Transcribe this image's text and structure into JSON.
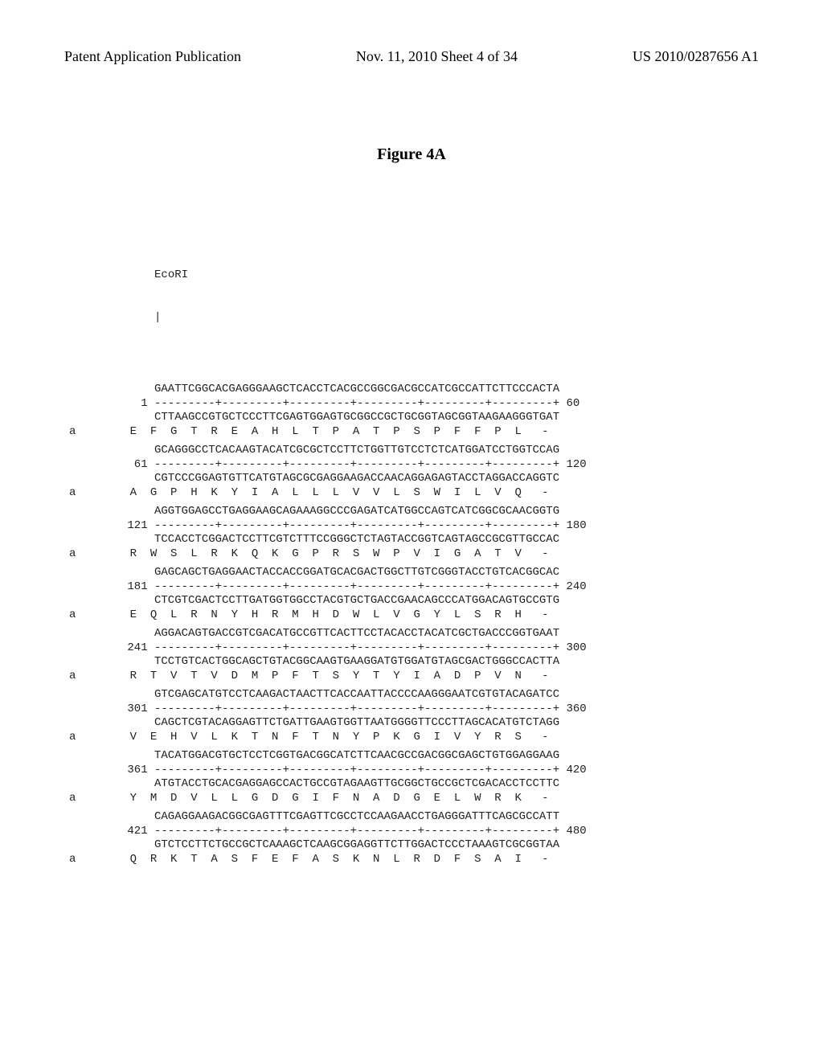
{
  "header": {
    "left": "Patent Application Publication",
    "center": "Nov. 11, 2010  Sheet 4 of 34",
    "right": "US 2010/0287656 A1"
  },
  "figure": {
    "title": "Figure 4A"
  },
  "enzyme": {
    "name": "EcoRI",
    "marker": "|"
  },
  "ruler": "---------+---------+---------+---------+---------+---------+",
  "blocks": [
    {
      "start": "1",
      "end": "60",
      "top": "GAATTCGGCACGAGGGAAGCTCACCTCACGCCGGCGACGCCATCGCCATTCTTCCCACTA",
      "bottom": "CTTAAGCCGTGCTCCCTTCGAGTGGAGTGCGGCCGCTGCGGTAGCGGTAAGAAGGGTGAT",
      "aa": "     E  F  G  T  R  E  A  H  L  T  P  A  T  P  S  P  F  F  P  L   -"
    },
    {
      "start": "61",
      "end": "120",
      "top": "GCAGGGCCTCACAAGTACATCGCGCTCCTTCTGGTTGTCCTCTCATGGATCCTGGTCCAG",
      "bottom": "CGTCCCGGAGTGTTCATGTAGCGCGAGGAAGACCAACAGGAGAGTACCTAGGACCAGGTC",
      "aa": "     A  G  P  H  K  Y  I  A  L  L  L  V  V  L  S  W  I  L  V  Q   -"
    },
    {
      "start": "121",
      "end": "180",
      "top": "AGGTGGAGCCTGAGGAAGCAGAAAGGCCCGAGATCATGGCCAGTCATCGGCGCAACGGTG",
      "bottom": "TCCACCTCGGACTCCTTCGTCTTTCCGGGCTCTAGTACCGGTCAGTAGCCGCGTTGCCAC",
      "aa": "     R  W  S  L  R  K  Q  K  G  P  R  S  W  P  V  I  G  A  T  V   -"
    },
    {
      "start": "181",
      "end": "240",
      "top": "GAGCAGCTGAGGAACTACCACCGGATGCACGACTGGCTTGTCGGGTACCTGTCACGGCAC",
      "bottom": "CTCGTCGACTCCTTGATGGTGGCCTACGTGCTGACCGAACAGCCCATGGACAGTGCCGTG",
      "aa": "     E  Q  L  R  N  Y  H  R  M  H  D  W  L  V  G  Y  L  S  R  H   -"
    },
    {
      "start": "241",
      "end": "300",
      "top": "AGGACAGTGACCGTCGACATGCCGTTCACTTCCTACACCTACATCGCTGACCCGGTGAAT",
      "bottom": "TCCTGTCACTGGCAGCTGTACGGCAAGTGAAGGATGTGGATGTAGCGACTGGGCCACTTA",
      "aa": "     R  T  V  T  V  D  M  P  F  T  S  Y  T  Y  I  A  D  P  V  N   -"
    },
    {
      "start": "301",
      "end": "360",
      "top": "GTCGAGCATGTCCTCAAGACTAACTTCACCAATTACCCCAAGGGAATCGTGTACAGATCC",
      "bottom": "CAGCTCGTACAGGAGTTCTGATTGAAGTGGTTAATGGGGTTCCCTTAGCACATGTCTAGG",
      "aa": "     V  E  H  V  L  K  T  N  F  T  N  Y  P  K  G  I  V  Y  R  S   -"
    },
    {
      "start": "361",
      "end": "420",
      "top": "TACATGGACGTGCTCCTCGGTGACGGCATCTTCAACGCCGACGGCGAGCTGTGGAGGAAG",
      "bottom": "ATGTACCTGCACGAGGAGCCACTGCCGTAGAAGTTGCGGCTGCCGCTCGACACCTCCTTC",
      "aa": "     Y  M  D  V  L  L  G  D  G  I  F  N  A  D  G  E  L  W  R  K   -"
    },
    {
      "start": "421",
      "end": "480",
      "top": "CAGAGGAAGACGGCGAGTTTCGAGTTCGCCTCCAAGAACCTGAGGGATTTCAGCGCCATT",
      "bottom": "GTCTCCTTCTGCCGCTCAAAGCTCAAGCGGAGGTTCTTGGACTCCCTAAAGTCGCGGTAA",
      "aa": "     Q  R  K  T  A  S  F  E  F  A  S  K  N  L  R  D  F  S  A  I   -"
    }
  ]
}
